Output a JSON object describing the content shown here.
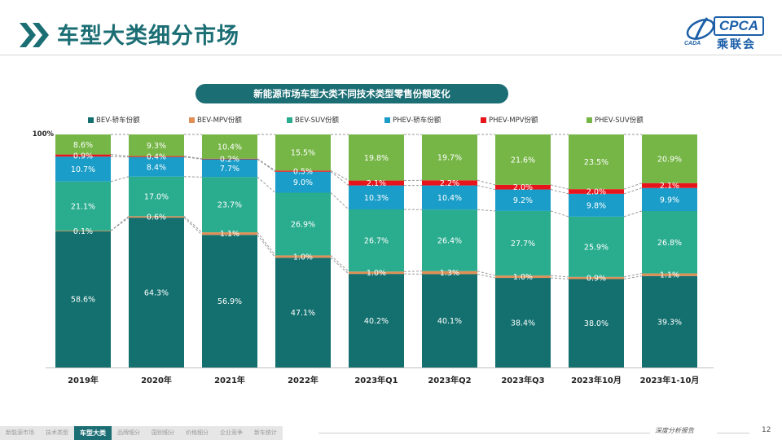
{
  "header": {
    "title": "车型大类细分市场",
    "logo_text": "CPCA",
    "logo_sub": "乘联会",
    "logo_small": "CADA"
  },
  "colors": {
    "accent": "#1b6e74",
    "bev_new": "#13706f",
    "bev_mpv": "#e09056",
    "bev_suv": "#2aac8e",
    "phev_new": "#1a9dc8",
    "phev_mpv": "#e8141b",
    "phev_suv": "#76b646"
  },
  "chart_data": {
    "type": "bar",
    "stacked": true,
    "percent": true,
    "title": "新能源市场车型大类不同技术类型零售份额变化",
    "ymax_label": "100%",
    "categories": [
      "2019年",
      "2020年",
      "2021年",
      "2022年",
      "2023年Q1",
      "2023年Q2",
      "2023年Q3",
      "2023年10月",
      "2023年1-10月"
    ],
    "series": [
      {
        "name": "BEV-轿车份额",
        "color": "#13706f",
        "values": [
          58.6,
          64.3,
          56.9,
          47.1,
          40.2,
          40.1,
          38.4,
          38.0,
          39.3
        ]
      },
      {
        "name": "BEV-MPV份额",
        "color": "#e09056",
        "values": [
          0.1,
          0.6,
          1.1,
          1.0,
          1.0,
          1.3,
          1.0,
          0.9,
          1.1
        ]
      },
      {
        "name": "BEV-SUV份额",
        "color": "#2aac8e",
        "values": [
          21.1,
          17.0,
          23.7,
          26.9,
          26.7,
          26.4,
          27.7,
          25.9,
          26.8
        ]
      },
      {
        "name": "PHEV-轿车份额",
        "color": "#1a9dc8",
        "values": [
          10.7,
          8.4,
          7.7,
          9.0,
          10.3,
          10.4,
          9.2,
          9.8,
          9.9
        ]
      },
      {
        "name": "PHEV-MPV份额",
        "color": "#e8141b",
        "values": [
          0.9,
          0.4,
          0.2,
          0.5,
          2.1,
          2.2,
          2.0,
          2.0,
          2.1
        ]
      },
      {
        "name": "PHEV-SUV份额",
        "color": "#76b646",
        "values": [
          8.6,
          9.3,
          10.4,
          15.5,
          19.8,
          19.7,
          21.6,
          23.5,
          20.9
        ]
      }
    ],
    "legend_position": "top",
    "connector_lines": "dashed"
  },
  "footer": {
    "tabs": [
      "新能源市场",
      "技术类型",
      "车型大类",
      "品牌细分",
      "国别细分",
      "价格细分",
      "企业竞争",
      "新车统计"
    ],
    "active_tab": 2,
    "brand": "深度分析报告",
    "page_number": "12"
  }
}
